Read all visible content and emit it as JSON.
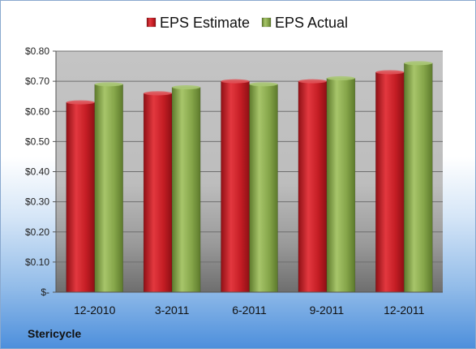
{
  "company": "Stericycle",
  "legend": [
    {
      "name": "EPS Estimate",
      "color": "#c9212a"
    },
    {
      "name": "EPS Actual",
      "color": "#8fae52"
    }
  ],
  "chart_data": {
    "type": "bar",
    "title": "",
    "xlabel": "",
    "ylabel": "",
    "categories": [
      "12-2010",
      "3-2011",
      "6-2011",
      "9-2011",
      "12-2011"
    ],
    "series": [
      {
        "name": "EPS Estimate",
        "values": [
          0.63,
          0.66,
          0.7,
          0.7,
          0.73
        ],
        "color": "#c9212a"
      },
      {
        "name": "EPS Actual",
        "values": [
          0.69,
          0.68,
          0.69,
          0.71,
          0.76
        ],
        "color": "#8fae52"
      }
    ],
    "ylim": [
      0,
      0.8
    ],
    "yticks": [
      0,
      0.1,
      0.2,
      0.3,
      0.4,
      0.5,
      0.6,
      0.7,
      0.8
    ],
    "ytick_labels": [
      "$-",
      "$0.10",
      "$0.20",
      "$0.30",
      "$0.40",
      "$0.50",
      "$0.60",
      "$0.70",
      "$0.80"
    ],
    "grid": true,
    "legend_position": "top-center"
  }
}
